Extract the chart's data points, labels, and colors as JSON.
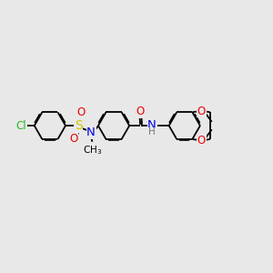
{
  "bg_color": "#e8e8e8",
  "bond_color": "#000000",
  "line_width": 1.3,
  "figsize": [
    3.0,
    3.0
  ],
  "dpi": 100,
  "atom_colors": {
    "Cl": "#22bb22",
    "S": "#cccc00",
    "N": "#0000ee",
    "O": "#ee0000",
    "H": "#777777"
  }
}
